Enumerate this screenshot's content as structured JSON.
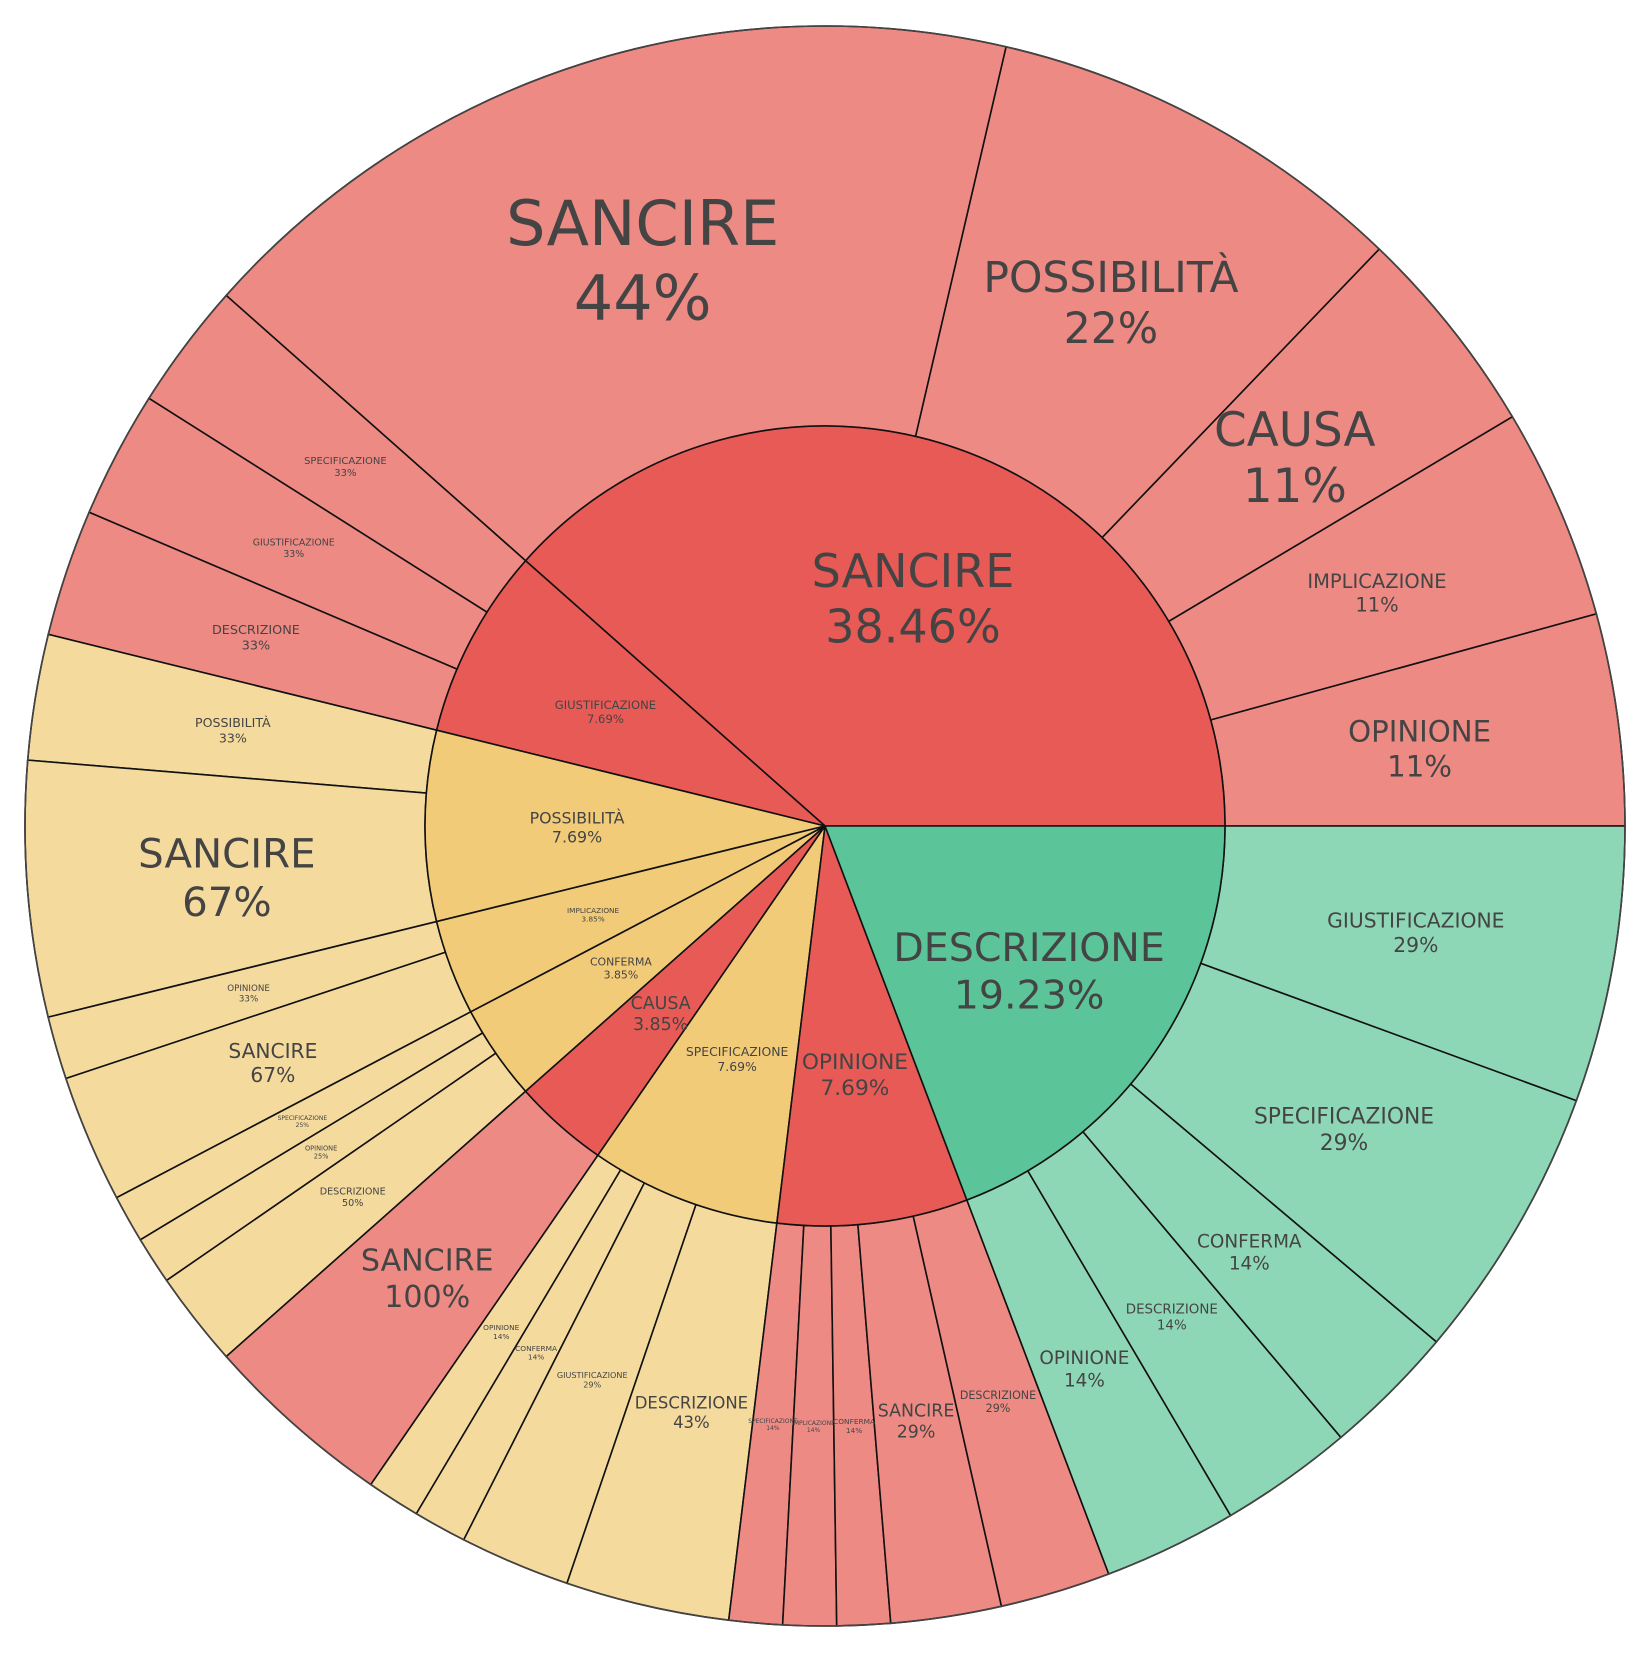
{
  "chart_data": {
    "type": "sunburst",
    "colors": {
      "red_inner": "#E85A55",
      "red_outer": "#EE8A84",
      "yellow_inner": "#F2CB78",
      "yellow_outer": "#F5DA9E",
      "green_inner": "#5BC599",
      "green_outer": "#8DD7B7",
      "stroke": "#111111",
      "text": "#444444"
    },
    "nodes": [
      {
        "label": "SANCIRE",
        "value_text": "38.46%",
        "share": 0.3846,
        "color": "red",
        "children": [
          {
            "label": "OPINIONE",
            "value_text": "11%",
            "share": 0.11
          },
          {
            "label": "IMPLICAZIONE",
            "value_text": "11%",
            "share": 0.11
          },
          {
            "label": "CAUSA",
            "value_text": "11%",
            "share": 0.11
          },
          {
            "label": "POSSIBILITÀ",
            "value_text": "22%",
            "share": 0.22
          },
          {
            "label": "SANCIRE",
            "value_text": "44%",
            "share": 0.44
          }
        ]
      },
      {
        "label": "GIUSTIFICAZIONE",
        "value_text": "7.69%",
        "share": 0.0769,
        "color": "red",
        "children": [
          {
            "label": "SPECIFICAZIONE",
            "value_text": "33%",
            "share": 0.33
          },
          {
            "label": "GIUSTIFICAZIONE",
            "value_text": "33%",
            "share": 0.33
          },
          {
            "label": "DESCRIZIONE",
            "value_text": "33%",
            "share": 0.33
          }
        ]
      },
      {
        "label": "POSSIBILITÀ",
        "value_text": "7.69%",
        "share": 0.0769,
        "color": "yellow",
        "children": [
          {
            "label": "POSSIBILITÀ",
            "value_text": "33%",
            "share": 0.33
          },
          {
            "label": "SANCIRE",
            "value_text": "67%",
            "share": 0.67
          }
        ]
      },
      {
        "label": "IMPLICAZIONE",
        "value_text": "3.85%",
        "share": 0.0385,
        "color": "yellow",
        "children": [
          {
            "label": "OPINIONE",
            "value_text": "33%",
            "share": 0.33
          },
          {
            "label": "SANCIRE",
            "value_text": "67%",
            "share": 0.67
          }
        ]
      },
      {
        "label": "CONFERMA",
        "value_text": "3.85%",
        "share": 0.0385,
        "color": "yellow",
        "children": [
          {
            "label": "SPECIFICAZIONE",
            "value_text": "25%",
            "share": 0.25
          },
          {
            "label": "OPINIONE",
            "value_text": "25%",
            "share": 0.25
          },
          {
            "label": "DESCRIZIONE",
            "value_text": "50%",
            "share": 0.5
          }
        ]
      },
      {
        "label": "CAUSA",
        "value_text": "3.85%",
        "share": 0.0385,
        "color": "red",
        "children": [
          {
            "label": "SANCIRE",
            "value_text": "100%",
            "share": 1.0
          }
        ]
      },
      {
        "label": "SPECIFICAZIONE",
        "value_text": "7.69%",
        "share": 0.0769,
        "color": "yellow",
        "children": [
          {
            "label": "OPINIONE",
            "value_text": "14%",
            "share": 0.14
          },
          {
            "label": "CONFERMA",
            "value_text": "14%",
            "share": 0.14
          },
          {
            "label": "GIUSTIFICAZIONE",
            "value_text": "29%",
            "share": 0.29
          },
          {
            "label": "DESCRIZIONE",
            "value_text": "43%",
            "share": 0.43
          }
        ]
      },
      {
        "label": "OPINIONE",
        "value_text": "7.69%",
        "share": 0.0769,
        "color": "red",
        "children": [
          {
            "label": "SPECIFICAZIONE",
            "value_text": "14%",
            "share": 0.14
          },
          {
            "label": "IMPLICAZIONE",
            "value_text": "14%",
            "share": 0.14
          },
          {
            "label": "CONFERMA",
            "value_text": "14%",
            "share": 0.14
          },
          {
            "label": "SANCIRE",
            "value_text": "29%",
            "share": 0.29
          },
          {
            "label": "DESCRIZIONE",
            "value_text": "29%",
            "share": 0.29
          }
        ]
      },
      {
        "label": "DESCRIZIONE",
        "value_text": "19.23%",
        "share": 0.1923,
        "color": "green",
        "children": [
          {
            "label": "OPINIONE",
            "value_text": "14%",
            "share": 0.14
          },
          {
            "label": "DESCRIZIONE",
            "value_text": "14%",
            "share": 0.14
          },
          {
            "label": "CONFERMA",
            "value_text": "14%",
            "share": 0.14
          },
          {
            "label": "SPECIFICAZIONE",
            "value_text": "29%",
            "share": 0.29
          },
          {
            "label": "GIUSTIFICAZIONE",
            "value_text": "29%",
            "share": 0.29
          }
        ]
      }
    ]
  }
}
